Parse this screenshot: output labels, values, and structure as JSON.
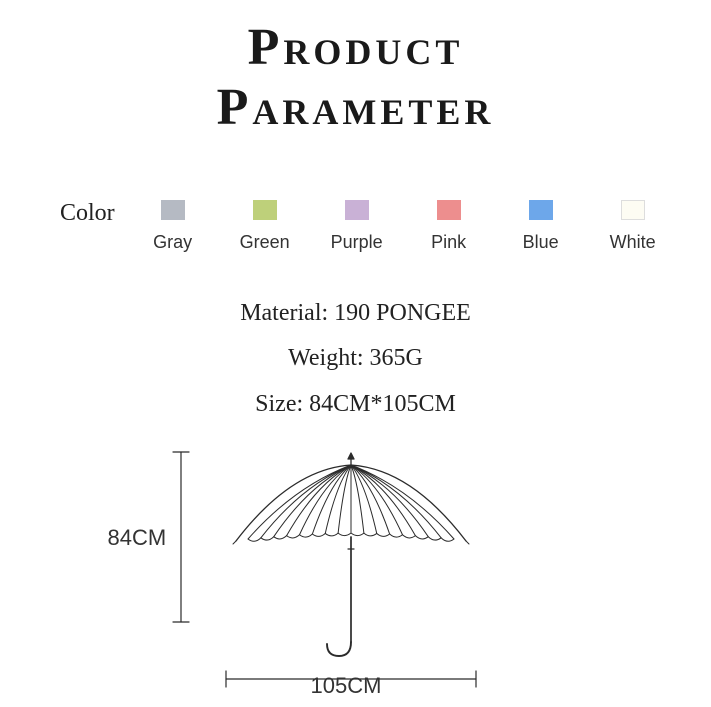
{
  "title_line1": "Product",
  "title_line2": "Parameter",
  "color_label": "Color",
  "swatches": [
    {
      "name": "Gray",
      "hex": "#b5bac3"
    },
    {
      "name": "Green",
      "hex": "#bed07a"
    },
    {
      "name": "Purple",
      "hex": "#c9b1d6"
    },
    {
      "name": "Pink",
      "hex": "#ed8e8e"
    },
    {
      "name": "Blue",
      "hex": "#6da7ea"
    },
    {
      "name": "White",
      "hex": "#fdfcf3"
    }
  ],
  "specs": {
    "material": "Material: 190 PONGEE",
    "weight": "Weight: 365G",
    "size": "Size: 84CM*105CM"
  },
  "diagram": {
    "height_label": "84CM",
    "width_label": "105CM",
    "stroke_color": "#2b2b2b",
    "stroke_width_umbrella": 1.3,
    "stroke_width_dims": 1.2,
    "rib_count": 16
  }
}
